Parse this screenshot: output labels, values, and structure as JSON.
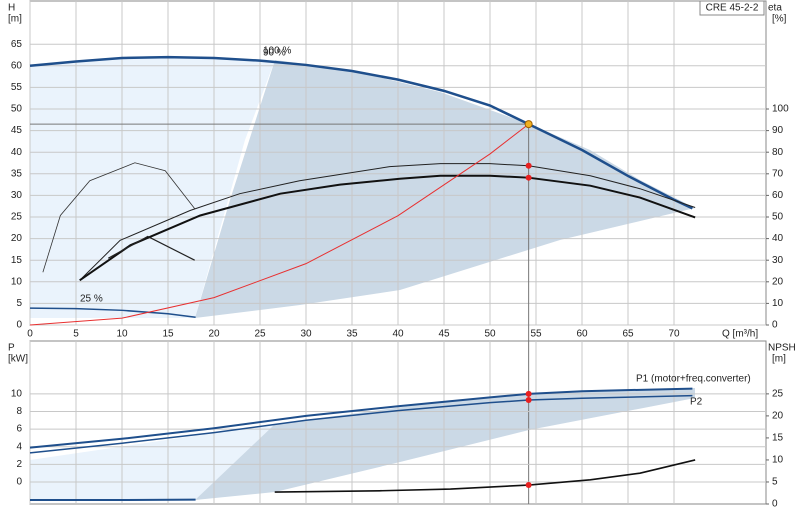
{
  "chart_data": [
    {
      "type": "line",
      "title": "CRE 45-2-2",
      "ylabel": "H",
      "yunit": "[m]",
      "y2label": "eta",
      "y2unit": "[%]",
      "xlabel": "Q [m³/h]",
      "xlim": [
        0,
        80
      ],
      "xticks": [
        0,
        5,
        10,
        15,
        20,
        25,
        30,
        35,
        40,
        45,
        50,
        55,
        60,
        65,
        70
      ],
      "ylim": [
        0,
        75
      ],
      "yticks": [
        0,
        5,
        10,
        15,
        20,
        25,
        30,
        35,
        40,
        45,
        50,
        55,
        60,
        65
      ],
      "y2lim": [
        0,
        150
      ],
      "y2ticks": [
        0,
        10,
        20,
        30,
        40,
        50,
        60,
        70,
        80,
        90,
        100
      ],
      "grid": true,
      "series": [
        {
          "color": "#1f4f8c",
          "line_width": 2.5,
          "x": [
            0,
            5,
            10,
            15,
            20,
            25,
            30,
            35,
            40,
            45,
            50,
            54.2,
            60,
            65,
            70,
            72
          ],
          "values": [
            60,
            61,
            61.8,
            62,
            61.8,
            61.2,
            60.2,
            58.8,
            56.8,
            54.2,
            50.8,
            46.5,
            40.5,
            34.5,
            29,
            27
          ]
        },
        {
          "color": "#1f4f8c",
          "line_width": 1.5,
          "x": [
            0,
            5,
            10,
            15,
            18
          ],
          "values": [
            3.9,
            3.8,
            3.4,
            2.6,
            1.8
          ]
        },
        {
          "color": "#222222",
          "line_width": 1,
          "axis": "y2",
          "x": [
            5.65,
            9.8,
            17.4,
            22.8,
            29.3,
            39.1,
            44.6,
            50,
            54.2,
            60.9,
            66.3,
            72.3
          ],
          "values": [
            21.7,
            39.2,
            53,
            60.8,
            66.8,
            73.3,
            74.7,
            74.7,
            73.7,
            69.1,
            63.1,
            54.4
          ]
        },
        {
          "color": "#111111",
          "line_width": 2,
          "axis": "y2",
          "x": [
            5.4,
            10.9,
            18.5,
            27.2,
            33.7,
            40.2,
            44.6,
            50,
            54.2,
            60.9,
            66.3,
            72.3
          ],
          "values": [
            20.7,
            36.9,
            50.7,
            60.8,
            65,
            67.7,
            69.1,
            69.1,
            68.2,
            64.5,
            59,
            49.8
          ]
        },
        {
          "color": "#333333",
          "line_width": 0.8,
          "axis": "y2",
          "x": [
            1.4,
            3.3,
            6.5,
            11.4,
            14.7,
            17.9
          ],
          "values": [
            24.4,
            50.7,
            66.8,
            75.1,
            71.4,
            53.9
          ]
        },
        {
          "color": "#222222",
          "line_width": 1.2,
          "axis": "y2",
          "x": [
            8.5,
            12.8,
            17.9
          ],
          "values": [
            30.9,
            41,
            30
          ]
        },
        {
          "color": "#e83030",
          "line_width": 1,
          "x": [
            0,
            10,
            20,
            30,
            40,
            50,
            54.2
          ],
          "values": [
            0,
            1.58,
            6.33,
            14.2,
            25.3,
            39.6,
            46.5
          ]
        }
      ],
      "operating_point": {
        "x": 54.2,
        "y": 46.5,
        "color": "#f0b020"
      },
      "points": [
        {
          "x": 54.2,
          "y": 73.7,
          "axis": "y2",
          "color": "#e82020"
        },
        {
          "x": 54.2,
          "y": 68.2,
          "axis": "y2",
          "color": "#e82020"
        }
      ],
      "annotations": [
        "100 %",
        "90 %",
        "25 %"
      ]
    },
    {
      "type": "line",
      "ylabel": "P",
      "yunit": "[kW]",
      "y2label": "NPSH",
      "y2unit": "[m]",
      "xlim": [
        0,
        80
      ],
      "xticks": [
        0,
        5,
        10,
        15,
        20,
        25,
        30,
        35,
        40,
        45,
        50,
        55,
        60,
        65,
        70
      ],
      "ylim": [
        -2.5,
        16
      ],
      "yticks": [
        0,
        2,
        4,
        6,
        8,
        10
      ],
      "y2lim": [
        0,
        37
      ],
      "y2ticks": [
        0,
        5,
        10,
        15,
        20,
        25
      ],
      "grid": true,
      "series": [
        {
          "color": "#1f4f8c",
          "line_width": 2,
          "x": [
            0,
            10,
            20,
            30,
            40,
            50,
            54.2,
            60,
            72
          ],
          "values": [
            3.9,
            4.9,
            6.1,
            7.5,
            8.6,
            9.6,
            10,
            10.3,
            10.6
          ]
        },
        {
          "color": "#1f4f8c",
          "line_width": 1.5,
          "x": [
            0,
            10,
            20,
            30,
            40,
            50,
            54.2,
            60,
            72
          ],
          "values": [
            3.3,
            4.4,
            5.6,
            7,
            8.1,
            9,
            9.3,
            9.5,
            9.8
          ]
        },
        {
          "color": "#111111",
          "line_width": 1.6,
          "axis": "y2",
          "x": [
            26.6,
            38,
            45.7,
            54.2,
            60.9,
            66.3,
            72.3
          ],
          "values": [
            2.7,
            3,
            3.4,
            4.3,
            5.5,
            7,
            10
          ]
        },
        {
          "color": "#1f4f8c",
          "line_width": 2,
          "axis": "y2",
          "x": [
            0,
            9,
            18
          ],
          "values": [
            0.9,
            0.9,
            1
          ]
        }
      ],
      "points": [
        {
          "x": 54.2,
          "y": 10,
          "color": "#e82020"
        },
        {
          "x": 54.2,
          "y": 9.3,
          "color": "#e82020"
        },
        {
          "x": 54.2,
          "y": 4.3,
          "axis": "y2",
          "color": "#e82020"
        }
      ],
      "annotations": [
        "P1 (motor+freq.converter)",
        "P2"
      ]
    }
  ]
}
